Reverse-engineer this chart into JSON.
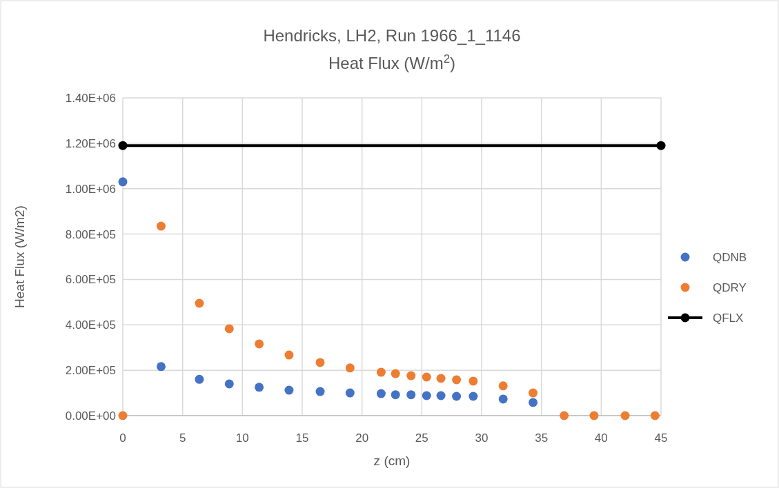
{
  "chart_data": {
    "type": "scatter",
    "title": "Hendricks, LH2, Run 1966_1_1146",
    "subtitle": "Heat Flux (W/m$^{2}$)",
    "xlabel": "z (cm)",
    "ylabel": "Heat Flux (W/m2)",
    "x": [
      0,
      3.2,
      6.4,
      8.9,
      11.4,
      13.9,
      16.5,
      19.0,
      21.6,
      22.8,
      24.1,
      25.4,
      26.6,
      27.9,
      29.3,
      31.8,
      34.3,
      36.9,
      39.4,
      42.0,
      44.5
    ],
    "series": [
      {
        "name": "QDNB",
        "color": "#4472c4",
        "values": [
          1030000,
          216000,
          160000,
          140000,
          125000,
          112000,
          106000,
          100000,
          97000,
          92000,
          92000,
          88000,
          88000,
          85000,
          85000,
          73000,
          58000,
          null,
          null,
          null,
          null
        ]
      },
      {
        "name": "QDRY",
        "color": "#ed7d31",
        "values": [
          0,
          835000,
          495000,
          383000,
          316000,
          267000,
          234000,
          210000,
          191000,
          185000,
          176000,
          170000,
          164000,
          158000,
          152000,
          131000,
          100000,
          0,
          0,
          0,
          0
        ]
      },
      {
        "name": "QFLX",
        "color": "#000000",
        "type": "line",
        "marker": "circle",
        "x": [
          0,
          45
        ],
        "values": [
          1190000,
          1190000
        ]
      }
    ],
    "xlim": [
      0,
      45
    ],
    "xticks": [
      0,
      5,
      10,
      15,
      20,
      25,
      30,
      35,
      40,
      45
    ],
    "ylim": [
      0,
      1400000
    ],
    "yticks": [
      {
        "value": 0,
        "label": "0.00E+00"
      },
      {
        "value": 200000,
        "label": "2.00E+05"
      },
      {
        "value": 400000,
        "label": "4.00E+05"
      },
      {
        "value": 600000,
        "label": "6.00E+05"
      },
      {
        "value": 800000,
        "label": "8.00E+05"
      },
      {
        "value": 1000000,
        "label": "1.00E+06"
      },
      {
        "value": 1200000,
        "label": "1.20E+06"
      },
      {
        "value": 1400000,
        "label": "1.40E+06"
      }
    ],
    "grid": true,
    "legend": "right",
    "marker": "circle"
  }
}
